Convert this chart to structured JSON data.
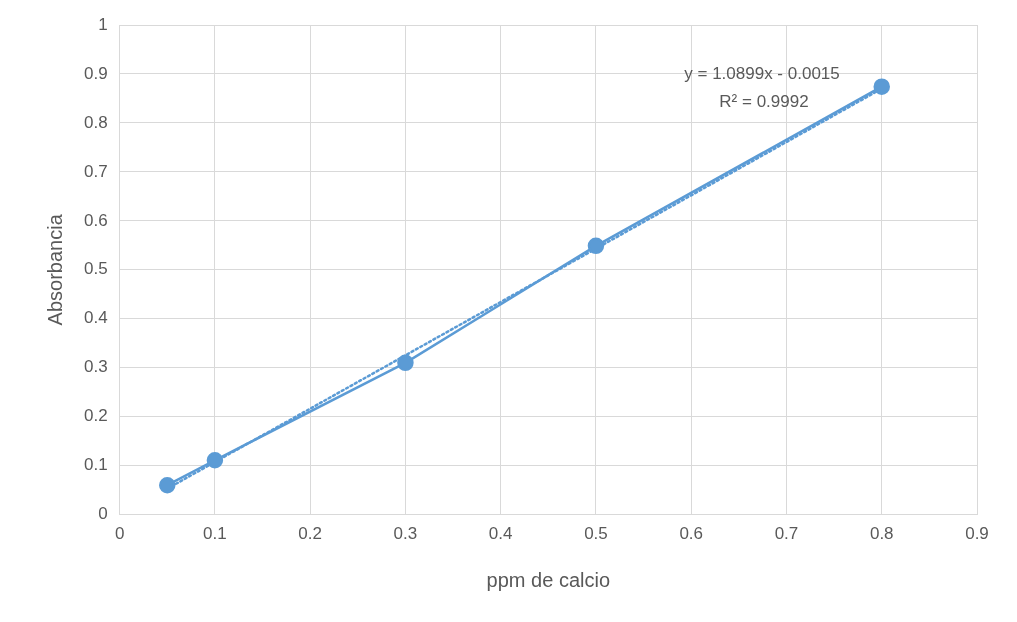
{
  "chart_data": {
    "type": "line",
    "xlabel": "ppm de calcio",
    "ylabel": "Absorbancia",
    "series": [
      {
        "type": "line",
        "color": "#5b9bd5",
        "marker": "circle",
        "line_style": "solid",
        "x": [
          0.05,
          0.1,
          0.3,
          0.5,
          0.8
        ],
        "values": [
          0.06,
          0.111,
          0.31,
          0.549,
          0.874
        ]
      },
      {
        "type": "line",
        "color": "#5b9bd5",
        "marker": "none",
        "line_style": "dotted",
        "x": [
          0.05,
          0.8
        ],
        "values": [
          0.053,
          0.87
        ]
      }
    ],
    "xlim": [
      0,
      0.9
    ],
    "xticks": [
      0,
      0.1,
      0.2,
      0.3,
      0.4,
      0.5,
      0.6,
      0.7,
      0.8,
      0.9
    ],
    "ylim": [
      0,
      1
    ],
    "yticks": [
      0,
      0.1,
      0.2,
      0.3,
      0.4,
      0.5,
      0.6,
      0.7,
      0.8,
      0.9,
      1
    ],
    "grid": true,
    "legend": false,
    "annotations": [
      "y = 1.0899x - 0.0015",
      "R² = 0.9992"
    ]
  }
}
